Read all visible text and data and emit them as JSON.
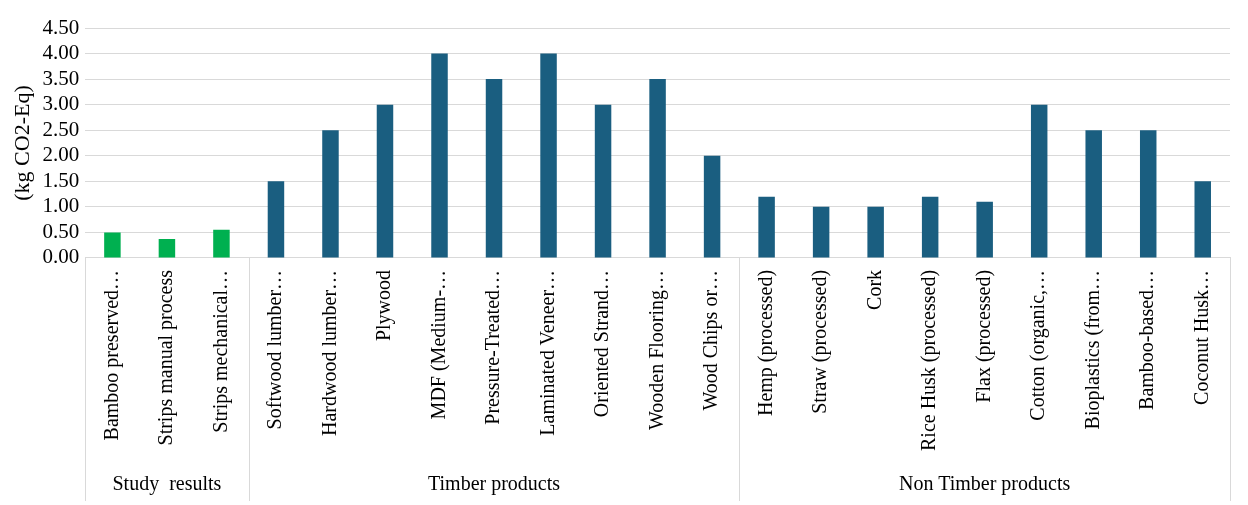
{
  "chart_data": {
    "type": "bar",
    "ylabel": "(kg CO2-Eq)",
    "categories": [
      "Bamboo preserved…",
      "Strips manual process",
      "Strips mechanical…",
      "Softwood lumber…",
      "Hardwood lumber…",
      "Plywood",
      "MDF (Medium-…",
      "Pressure-Treated…",
      "Laminated Veneer…",
      "Oriented Strand…",
      "Wooden Flooring…",
      "Wood Chips or…",
      "Hemp (processed)",
      "Straw (processed)",
      "Cork",
      "Rice Husk (processed)",
      "Flax (processed)",
      "Cotton (organic,…",
      "Bioplastics (from…",
      "Bamboo-based…",
      "Coconut Husk…"
    ],
    "series": [
      {
        "color": "#00b050",
        "values": [
          0.5,
          0.37,
          0.55,
          null,
          null,
          null,
          null,
          null,
          null,
          null,
          null,
          null,
          null,
          null,
          null,
          null,
          null,
          null,
          null,
          null,
          null
        ]
      },
      {
        "color": "#1a5e80",
        "values": [
          null,
          null,
          null,
          1.5,
          2.5,
          3.0,
          4.0,
          3.5,
          4.0,
          3.0,
          3.5,
          2.0,
          null,
          null,
          null,
          null,
          null,
          null,
          null,
          null,
          null
        ]
      },
      {
        "color": "#1a5e80",
        "values": [
          null,
          null,
          null,
          null,
          null,
          null,
          null,
          null,
          null,
          null,
          null,
          null,
          1.2,
          1.0,
          1.0,
          1.2,
          1.1,
          3.0,
          2.5,
          2.5,
          1.5
        ]
      }
    ],
    "ylim": [
      0,
      4.5
    ],
    "yticks": [
      {
        "value": 0,
        "label": "0.00"
      },
      {
        "value": 0.5,
        "label": "0.50"
      },
      {
        "value": 1,
        "label": "1.00"
      },
      {
        "value": 1.5,
        "label": "1.50"
      },
      {
        "value": 2,
        "label": "2.00"
      },
      {
        "value": 2.5,
        "label": "2.50"
      },
      {
        "value": 3,
        "label": "3.00"
      },
      {
        "value": 3.5,
        "label": "3.50"
      },
      {
        "value": 4,
        "label": "4.00"
      },
      {
        "value": 4.5,
        "label": "4.50"
      }
    ],
    "grid": "y",
    "annotations": [
      "Study  results",
      "Timber products",
      "Non Timber products"
    ]
  }
}
